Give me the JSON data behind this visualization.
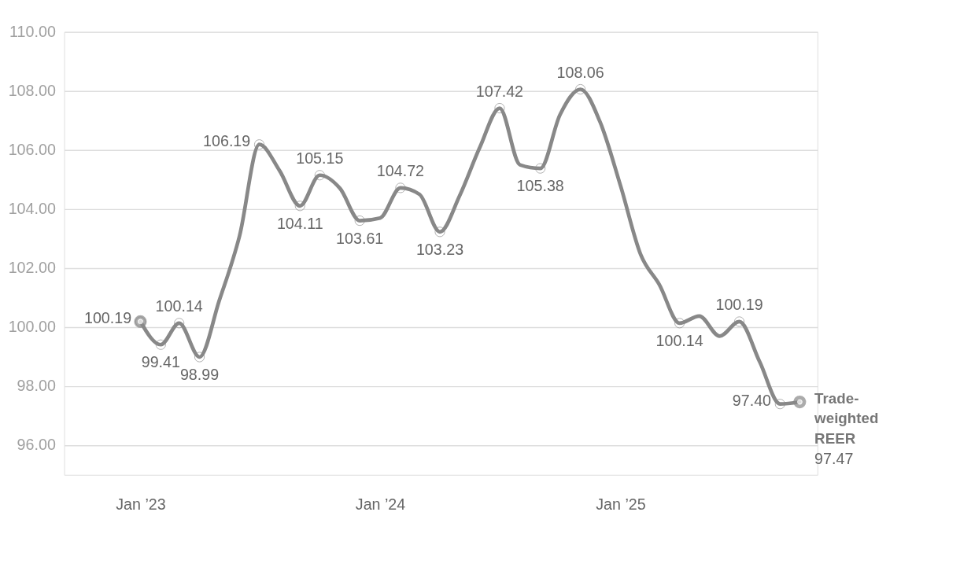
{
  "chart_data": {
    "type": "line",
    "x": [
      "2023-01",
      "2023-02",
      "2023-03",
      "2023-04",
      "2023-05",
      "2023-06",
      "2023-07",
      "2023-08",
      "2023-09",
      "2023-10",
      "2023-11",
      "2023-12",
      "2024-01",
      "2024-02",
      "2024-03",
      "2024-04",
      "2024-05",
      "2024-06",
      "2024-07",
      "2024-08",
      "2024-09",
      "2024-10",
      "2024-11",
      "2024-12",
      "2025-01",
      "2025-02",
      "2025-03",
      "2025-04",
      "2025-05",
      "2025-06",
      "2025-07",
      "2025-08",
      "2025-09",
      "2025-10"
    ],
    "series": [
      {
        "name": "Trade-weighted REER",
        "color": "#888888",
        "values": [
          100.19,
          99.41,
          100.14,
          98.99,
          100.9,
          103.1,
          106.19,
          105.3,
          104.11,
          105.15,
          104.7,
          103.61,
          103.7,
          104.72,
          104.5,
          103.23,
          104.45,
          106.1,
          107.42,
          105.5,
          105.38,
          107.2,
          108.06,
          106.95,
          104.8,
          102.45,
          101.45,
          100.14,
          100.38,
          99.7,
          100.19,
          98.83,
          97.4,
          97.47
        ],
        "value_labels": [
          "100.19",
          "99.41",
          "100.14",
          "98.99",
          null,
          null,
          "106.19",
          null,
          "104.11",
          "105.15",
          null,
          "103.61",
          null,
          "104.72",
          null,
          "103.23",
          null,
          null,
          "107.42",
          null,
          "105.38",
          null,
          "108.06",
          null,
          null,
          null,
          null,
          "100.14",
          null,
          null,
          "100.19",
          null,
          "97.40",
          "97.47"
        ]
      }
    ],
    "xlim": [
      "2022-09-07",
      "2025-10-28"
    ],
    "xticks": [
      {
        "value": "2023-01",
        "label": "Jan ’23"
      },
      {
        "value": "2024-01",
        "label": "Jan ’24"
      },
      {
        "value": "2025-01",
        "label": "Jan ’25"
      }
    ],
    "ylim": [
      95,
      110
    ],
    "yticks": [
      {
        "value": 96,
        "label": "96.00"
      },
      {
        "value": 98,
        "label": "98.00"
      },
      {
        "value": 100,
        "label": "100.00"
      },
      {
        "value": 102,
        "label": "102.00"
      },
      {
        "value": 104,
        "label": "104.00"
      },
      {
        "value": 106,
        "label": "106.00"
      },
      {
        "value": 108,
        "label": "108.00"
      },
      {
        "value": 110,
        "label": "110.00"
      }
    ],
    "grid": "y",
    "marker": "circle",
    "line_style": "solid"
  }
}
